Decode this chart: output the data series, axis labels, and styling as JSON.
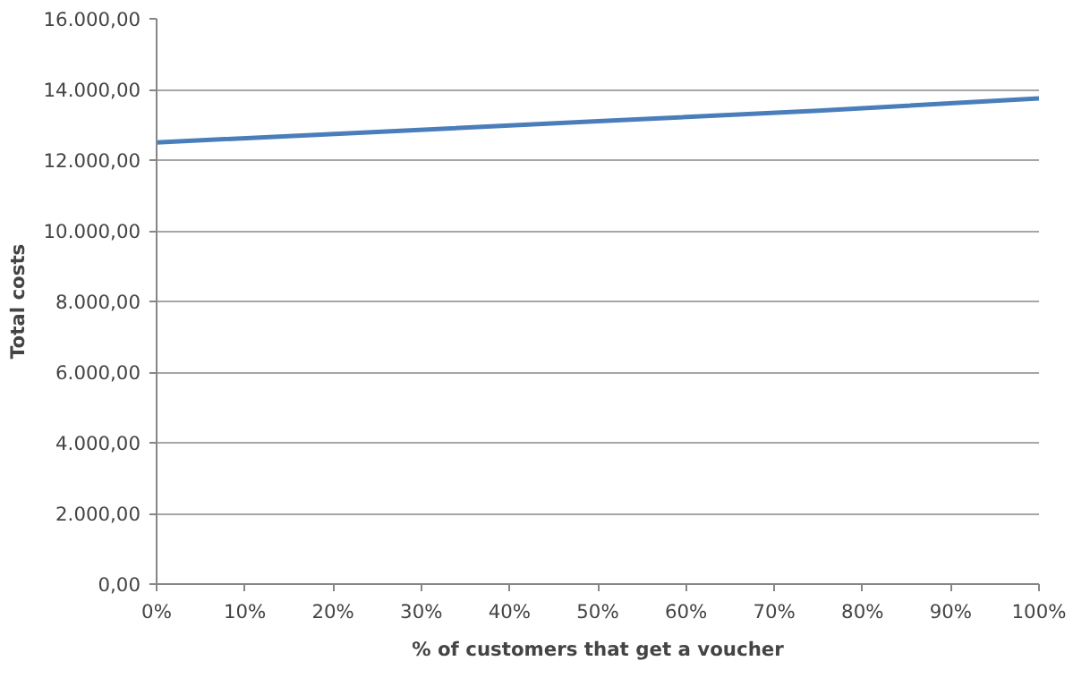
{
  "chart_data": {
    "type": "line",
    "xlabel": "% of customers that get a voucher",
    "ylabel": "Total costs",
    "x": [
      0,
      25,
      50,
      75,
      100
    ],
    "series": [
      {
        "color": "#4a7ebb",
        "values": [
          12500,
          12800,
          13100,
          13400,
          13750
        ]
      }
    ],
    "xlim": [
      0,
      100
    ],
    "ylim": [
      0,
      16000
    ],
    "xticks": [
      {
        "value": 0,
        "label": "0%"
      },
      {
        "value": 10,
        "label": "10%"
      },
      {
        "value": 20,
        "label": "20%"
      },
      {
        "value": 30,
        "label": "30%"
      },
      {
        "value": 40,
        "label": "40%"
      },
      {
        "value": 50,
        "label": "50%"
      },
      {
        "value": 60,
        "label": "60%"
      },
      {
        "value": 70,
        "label": "70%"
      },
      {
        "value": 80,
        "label": "80%"
      },
      {
        "value": 90,
        "label": "90%"
      },
      {
        "value": 100,
        "label": "100%"
      }
    ],
    "yticks": [
      {
        "value": 0,
        "label": "0,00"
      },
      {
        "value": 2000,
        "label": "2.000,00"
      },
      {
        "value": 4000,
        "label": "4.000,00"
      },
      {
        "value": 6000,
        "label": "6.000,00"
      },
      {
        "value": 8000,
        "label": "8.000,00"
      },
      {
        "value": 10000,
        "label": "10.000,00"
      },
      {
        "value": 12000,
        "label": "12.000,00"
      },
      {
        "value": 14000,
        "label": "14.000,00"
      },
      {
        "value": 16000,
        "label": "16.000,00"
      }
    ],
    "grid": "y",
    "marker": "none",
    "line_style": "solid"
  }
}
